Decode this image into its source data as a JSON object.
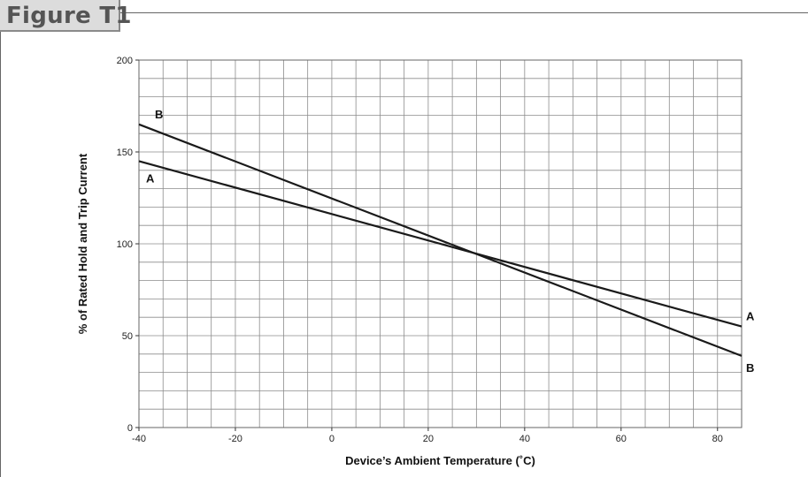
{
  "figure": {
    "title": "Figure T1"
  },
  "chart_data": {
    "type": "line",
    "title": "",
    "xlabel": "Device’s Ambient Temperature (˚C)",
    "ylabel": "% of Rated Hold and Trip Current",
    "xlim": [
      -40,
      85
    ],
    "ylim": [
      0,
      200
    ],
    "x_ticks": [
      -40,
      -20,
      0,
      20,
      40,
      60,
      80
    ],
    "y_ticks": [
      0,
      50,
      100,
      150,
      200
    ],
    "x_minor_step": 5,
    "y_minor_step": 10,
    "grid": true,
    "series": [
      {
        "name": "A",
        "x": [
          -40,
          85
        ],
        "y": [
          145,
          55
        ],
        "labels": [
          "A",
          "A"
        ]
      },
      {
        "name": "B",
        "x": [
          -40,
          85
        ],
        "y": [
          165,
          39
        ],
        "labels": [
          "B",
          "B"
        ]
      }
    ],
    "colors": {
      "line": "#1a1a1a",
      "grid": "#8c8c8c",
      "frame": "#666666",
      "tab_bg": "#dcdcdc"
    }
  }
}
